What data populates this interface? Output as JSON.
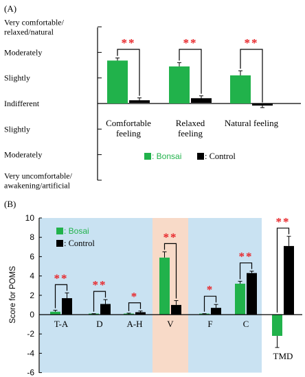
{
  "colors": {
    "bonsai": "#21b24b",
    "control": "#000000",
    "star": "#e8262a",
    "bg_blue": "#c9e2f2",
    "bg_orange": "#f8dac8"
  },
  "chart_data": [
    {
      "panel_label": "(A)",
      "type": "bar",
      "categories": [
        "Comfortable\nfeeling",
        "Relaxed\nfeeling",
        "Natural feeling"
      ],
      "series": [
        {
          "name": ": Bonsai",
          "values": [
            1.68,
            1.45,
            1.1
          ],
          "errors": [
            0.1,
            0.15,
            0.18
          ]
        },
        {
          "name": ": Control",
          "values": [
            0.1,
            0.18,
            -0.04
          ],
          "errors": [
            0.12,
            0.12,
            0.12
          ]
        }
      ],
      "ylim": [
        -3,
        3
      ],
      "yticklabels": [
        {
          "value": 3,
          "text": "Very comfortable/\nrelaxed/natural"
        },
        {
          "value": 2,
          "text": "Moderately"
        },
        {
          "value": 1,
          "text": "Slightly"
        },
        {
          "value": 0,
          "text": "Indifferent"
        },
        {
          "value": -1,
          "text": "Slightly"
        },
        {
          "value": -2,
          "text": "Moderately"
        },
        {
          "value": -3,
          "text": "Very uncomfortable/\nawakening/artificial"
        }
      ],
      "significance": [
        "**",
        "**",
        "**"
      ],
      "legend": "bottom-center"
    },
    {
      "panel_label": "(B)",
      "type": "bar",
      "categories": [
        "T-A",
        "D",
        "A-H",
        "V",
        "F",
        "C",
        "TMD"
      ],
      "series": [
        {
          "name": ": Bosai",
          "values": [
            0.3,
            0.05,
            0.05,
            5.9,
            0.05,
            3.2,
            -2.2
          ],
          "errors": [
            0.15,
            0.05,
            0.1,
            0.6,
            0.05,
            0.25,
            1.2
          ]
        },
        {
          "name": ": Control",
          "values": [
            1.7,
            1.1,
            0.25,
            1.0,
            0.7,
            4.3,
            7.1
          ],
          "errors": [
            0.55,
            0.45,
            0.12,
            0.45,
            0.35,
            0.2,
            1.0
          ]
        }
      ],
      "ylabel": "Score for POMS",
      "ylim": [
        -6,
        10
      ],
      "yticks": [
        -6,
        -4,
        -2,
        0,
        2,
        4,
        6,
        8,
        10
      ],
      "significance": [
        "**",
        "**",
        "*",
        "**",
        "*",
        "**",
        "**"
      ],
      "legend": "top-left"
    }
  ]
}
